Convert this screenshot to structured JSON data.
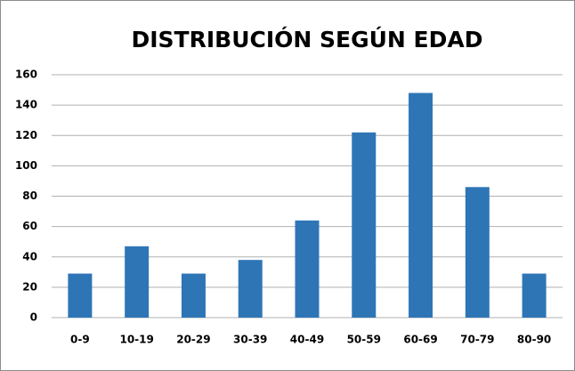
{
  "chart_data": {
    "type": "bar",
    "title": "DISTRIBUCIÓN SEGÚN EDAD",
    "categories": [
      "0-9",
      "10-19",
      "20-29",
      "30-39",
      "40-49",
      "50-59",
      "60-69",
      "70-79",
      "80-90"
    ],
    "values": [
      29,
      47,
      29,
      38,
      64,
      122,
      148,
      86,
      29
    ],
    "color": "#2e75b6",
    "ylim": [
      0,
      160
    ],
    "yticks": [
      0,
      20,
      40,
      60,
      80,
      100,
      120,
      140,
      160
    ],
    "grid": true
  }
}
